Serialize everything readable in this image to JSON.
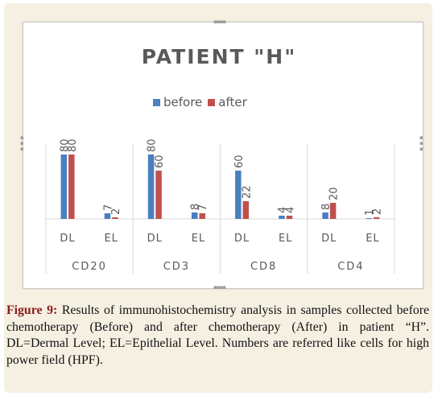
{
  "figure": {
    "label": "Figure 9:",
    "caption": "Results of immunohistochemistry analysis in samples collected before chemotherapy (Before) and after chemotherapy (After) in patient “H”. DL=Dermal Level; EL=Epithelial Level. Numbers are referred like cells for high power field (HPF)."
  },
  "colors": {
    "before": "#4a7fc0",
    "after": "#c0504d",
    "axis": "#d9d9d9",
    "text": "#595959",
    "frame": "#f5f0e2"
  },
  "chart_data": {
    "type": "bar",
    "title": "PATIENT \"H\"",
    "legend_position": "top",
    "grid": false,
    "ylim": [
      0,
      100
    ],
    "groups": [
      "CD20",
      "CD3",
      "CD8",
      "CD4"
    ],
    "categories": [
      "DL",
      "EL",
      "DL",
      "EL",
      "DL",
      "EL",
      "DL",
      "EL"
    ],
    "series": [
      {
        "name": "before",
        "values": [
          80,
          7,
          80,
          8,
          60,
          4,
          8,
          1
        ]
      },
      {
        "name": "after",
        "values": [
          80,
          2,
          60,
          7,
          22,
          4,
          20,
          2
        ]
      }
    ]
  }
}
